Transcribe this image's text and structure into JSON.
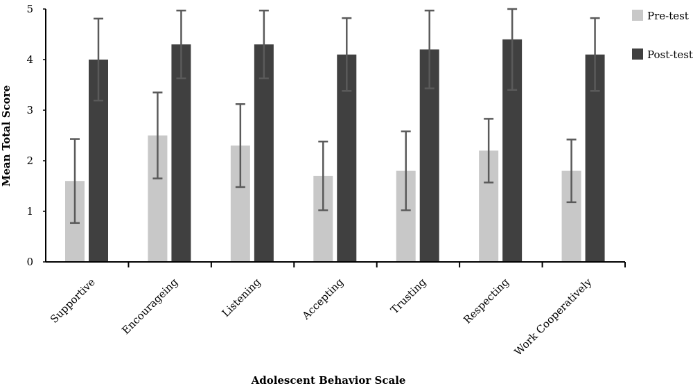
{
  "chart_data": {
    "type": "bar",
    "title": "",
    "xlabel": "Adolescent Behavior Scale",
    "ylabel": "Mean Total Score",
    "ylim": [
      0,
      5
    ],
    "yticks": [
      0,
      1,
      2,
      3,
      4,
      5
    ],
    "grid": false,
    "legend_position": "top-right",
    "categories": [
      "Supportive",
      "Encourageing",
      "Listening",
      "Accepting",
      "Trusting",
      "Respecting",
      "Work Cooperatively"
    ],
    "series": [
      {
        "name": "Pre-test",
        "color": "#c8c8c8",
        "values": [
          1.6,
          2.5,
          2.3,
          1.7,
          1.8,
          2.2,
          1.8
        ],
        "error": [
          0.83,
          0.85,
          0.82,
          0.68,
          0.78,
          0.63,
          0.62
        ]
      },
      {
        "name": "Post-test",
        "color": "#404040",
        "values": [
          4.0,
          4.3,
          4.3,
          4.1,
          4.2,
          4.4,
          4.1
        ],
        "error": [
          0.81,
          0.67,
          0.67,
          0.72,
          0.77,
          1.0,
          0.72
        ]
      }
    ],
    "error_bar_color": "#5a5a5a"
  }
}
